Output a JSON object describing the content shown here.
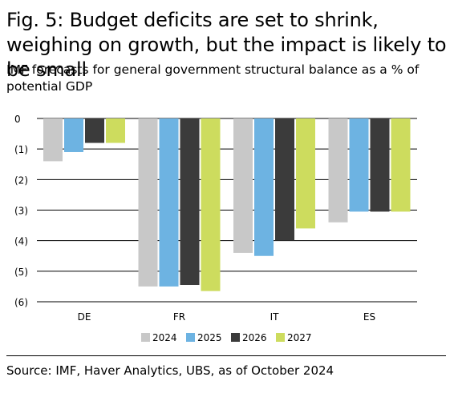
{
  "title": "Fig. 5: Budget deficits are set to shrink, weighing on growth, but the impact is likely to be small",
  "subtitle": "IMF forecasts for general government structural balance as a % of potential GDP",
  "source": "Source: IMF, Haver Analytics, UBS, as of October 2024",
  "chart_data": {
    "type": "bar",
    "categories": [
      "DE",
      "FR",
      "IT",
      "ES"
    ],
    "series": [
      {
        "name": "2024",
        "color": "#c8c8c8",
        "values": [
          -1.4,
          -5.5,
          -4.4,
          -3.4
        ]
      },
      {
        "name": "2025",
        "color": "#6db3e2",
        "values": [
          -1.1,
          -5.5,
          -4.5,
          -3.05
        ]
      },
      {
        "name": "2026",
        "color": "#3b3b3b",
        "values": [
          -0.8,
          -5.45,
          -4.0,
          -3.05
        ]
      },
      {
        "name": "2027",
        "color": "#cddc5e",
        "values": [
          -0.8,
          -5.65,
          -3.6,
          -3.05
        ]
      }
    ],
    "ylim": [
      -6,
      0
    ],
    "yticks": [
      0,
      -1,
      -2,
      -3,
      -4,
      -5,
      -6
    ],
    "ytick_labels": [
      "0",
      "(1)",
      "(2)",
      "(3)",
      "(4)",
      "(5)",
      "(6)"
    ],
    "grid": true,
    "legend_position": "bottom"
  }
}
